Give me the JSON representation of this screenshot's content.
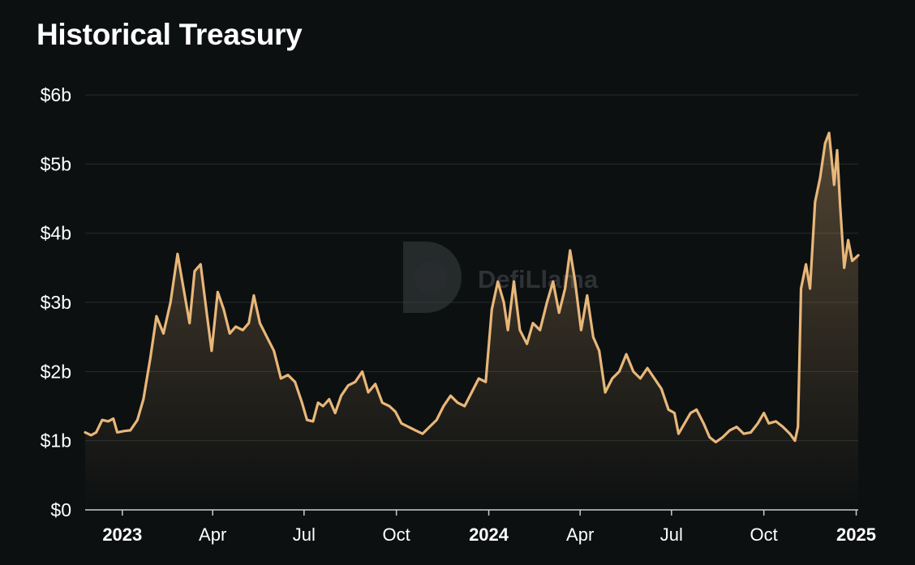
{
  "chart_data": {
    "type": "area",
    "title": "Historical Treasury",
    "unit": "$ billions",
    "ylim": [
      0,
      6.2
    ],
    "y_ticks": [
      {
        "value": 0,
        "label": "$0"
      },
      {
        "value": 1,
        "label": "$1b"
      },
      {
        "value": 2,
        "label": "$2b"
      },
      {
        "value": 3,
        "label": "$3b"
      },
      {
        "value": 4,
        "label": "$4b"
      },
      {
        "value": 5,
        "label": "$5b"
      },
      {
        "value": 6,
        "label": "$6b"
      }
    ],
    "x_range": [
      "2022-11-25",
      "2025-01-03"
    ],
    "x_ticks": [
      {
        "date": "2023-01-01",
        "label": "2023",
        "bold": true
      },
      {
        "date": "2023-04-01",
        "label": "Apr",
        "bold": false
      },
      {
        "date": "2023-07-01",
        "label": "Jul",
        "bold": false
      },
      {
        "date": "2023-10-01",
        "label": "Oct",
        "bold": false
      },
      {
        "date": "2024-01-01",
        "label": "2024",
        "bold": true
      },
      {
        "date": "2024-04-01",
        "label": "Apr",
        "bold": false
      },
      {
        "date": "2024-07-01",
        "label": "Jul",
        "bold": false
      },
      {
        "date": "2024-10-01",
        "label": "Oct",
        "bold": false
      },
      {
        "date": "2025-01-01",
        "label": "2025",
        "bold": true
      }
    ],
    "grid": true,
    "legend": "none",
    "series": [
      {
        "color": "#e8b77a",
        "points": [
          [
            "2022-11-25",
            1.12
          ],
          [
            "2022-12-01",
            1.08
          ],
          [
            "2022-12-06",
            1.12
          ],
          [
            "2022-12-12",
            1.3
          ],
          [
            "2022-12-18",
            1.28
          ],
          [
            "2022-12-23",
            1.32
          ],
          [
            "2022-12-27",
            1.12
          ],
          [
            "2023-01-03",
            1.14
          ],
          [
            "2023-01-09",
            1.15
          ],
          [
            "2023-01-16",
            1.3
          ],
          [
            "2023-01-22",
            1.6
          ],
          [
            "2023-01-29",
            2.2
          ],
          [
            "2023-02-04",
            2.8
          ],
          [
            "2023-02-11",
            2.55
          ],
          [
            "2023-02-18",
            3.0
          ],
          [
            "2023-02-25",
            3.7
          ],
          [
            "2023-03-03",
            3.2
          ],
          [
            "2023-03-09",
            2.7
          ],
          [
            "2023-03-14",
            3.45
          ],
          [
            "2023-03-20",
            3.55
          ],
          [
            "2023-03-26",
            2.85
          ],
          [
            "2023-03-31",
            2.3
          ],
          [
            "2023-04-06",
            3.15
          ],
          [
            "2023-04-12",
            2.9
          ],
          [
            "2023-04-18",
            2.55
          ],
          [
            "2023-04-24",
            2.65
          ],
          [
            "2023-05-01",
            2.6
          ],
          [
            "2023-05-07",
            2.7
          ],
          [
            "2023-05-12",
            3.1
          ],
          [
            "2023-05-18",
            2.7
          ],
          [
            "2023-05-25",
            2.5
          ],
          [
            "2023-06-01",
            2.3
          ],
          [
            "2023-06-08",
            1.9
          ],
          [
            "2023-06-15",
            1.95
          ],
          [
            "2023-06-22",
            1.85
          ],
          [
            "2023-06-29",
            1.55
          ],
          [
            "2023-07-04",
            1.3
          ],
          [
            "2023-07-10",
            1.28
          ],
          [
            "2023-07-15",
            1.55
          ],
          [
            "2023-07-20",
            1.5
          ],
          [
            "2023-07-26",
            1.6
          ],
          [
            "2023-08-01",
            1.4
          ],
          [
            "2023-08-07",
            1.65
          ],
          [
            "2023-08-14",
            1.8
          ],
          [
            "2023-08-21",
            1.85
          ],
          [
            "2023-08-28",
            2.0
          ],
          [
            "2023-09-03",
            1.7
          ],
          [
            "2023-09-10",
            1.82
          ],
          [
            "2023-09-17",
            1.55
          ],
          [
            "2023-09-24",
            1.5
          ],
          [
            "2023-09-30",
            1.42
          ],
          [
            "2023-10-06",
            1.25
          ],
          [
            "2023-10-13",
            1.2
          ],
          [
            "2023-10-20",
            1.15
          ],
          [
            "2023-10-27",
            1.1
          ],
          [
            "2023-11-03",
            1.2
          ],
          [
            "2023-11-10",
            1.3
          ],
          [
            "2023-11-17",
            1.5
          ],
          [
            "2023-11-24",
            1.65
          ],
          [
            "2023-12-01",
            1.55
          ],
          [
            "2023-12-08",
            1.5
          ],
          [
            "2023-12-15",
            1.7
          ],
          [
            "2023-12-22",
            1.9
          ],
          [
            "2023-12-29",
            1.85
          ],
          [
            "2024-01-04",
            2.9
          ],
          [
            "2024-01-10",
            3.3
          ],
          [
            "2024-01-16",
            3.0
          ],
          [
            "2024-01-20",
            2.6
          ],
          [
            "2024-01-26",
            3.3
          ],
          [
            "2024-02-01",
            2.6
          ],
          [
            "2024-02-08",
            2.4
          ],
          [
            "2024-02-14",
            2.7
          ],
          [
            "2024-02-21",
            2.6
          ],
          [
            "2024-02-28",
            3.0
          ],
          [
            "2024-03-05",
            3.3
          ],
          [
            "2024-03-11",
            2.85
          ],
          [
            "2024-03-17",
            3.2
          ],
          [
            "2024-03-22",
            3.75
          ],
          [
            "2024-03-27",
            3.3
          ],
          [
            "2024-04-02",
            2.6
          ],
          [
            "2024-04-08",
            3.1
          ],
          [
            "2024-04-14",
            2.5
          ],
          [
            "2024-04-20",
            2.3
          ],
          [
            "2024-04-26",
            1.7
          ],
          [
            "2024-05-03",
            1.9
          ],
          [
            "2024-05-10",
            2.0
          ],
          [
            "2024-05-17",
            2.25
          ],
          [
            "2024-05-24",
            2.0
          ],
          [
            "2024-05-31",
            1.9
          ],
          [
            "2024-06-07",
            2.05
          ],
          [
            "2024-06-14",
            1.9
          ],
          [
            "2024-06-21",
            1.75
          ],
          [
            "2024-06-28",
            1.45
          ],
          [
            "2024-07-04",
            1.4
          ],
          [
            "2024-07-08",
            1.1
          ],
          [
            "2024-07-14",
            1.25
          ],
          [
            "2024-07-20",
            1.4
          ],
          [
            "2024-07-26",
            1.45
          ],
          [
            "2024-08-02",
            1.25
          ],
          [
            "2024-08-08",
            1.05
          ],
          [
            "2024-08-14",
            0.98
          ],
          [
            "2024-08-21",
            1.05
          ],
          [
            "2024-08-28",
            1.15
          ],
          [
            "2024-09-04",
            1.2
          ],
          [
            "2024-09-11",
            1.1
          ],
          [
            "2024-09-18",
            1.12
          ],
          [
            "2024-09-25",
            1.25
          ],
          [
            "2024-10-01",
            1.4
          ],
          [
            "2024-10-06",
            1.25
          ],
          [
            "2024-10-13",
            1.28
          ],
          [
            "2024-10-20",
            1.2
          ],
          [
            "2024-10-27",
            1.1
          ],
          [
            "2024-11-01",
            1.0
          ],
          [
            "2024-11-04",
            1.2
          ],
          [
            "2024-11-07",
            3.2
          ],
          [
            "2024-11-12",
            3.55
          ],
          [
            "2024-11-16",
            3.2
          ],
          [
            "2024-11-21",
            4.45
          ],
          [
            "2024-11-26",
            4.8
          ],
          [
            "2024-12-01",
            5.3
          ],
          [
            "2024-12-05",
            5.45
          ],
          [
            "2024-12-10",
            4.7
          ],
          [
            "2024-12-13",
            5.2
          ],
          [
            "2024-12-16",
            4.4
          ],
          [
            "2024-12-20",
            3.5
          ],
          [
            "2024-12-24",
            3.9
          ],
          [
            "2024-12-28",
            3.6
          ],
          [
            "2025-01-03",
            3.68
          ]
        ]
      }
    ],
    "watermark": "DefiLlama"
  }
}
